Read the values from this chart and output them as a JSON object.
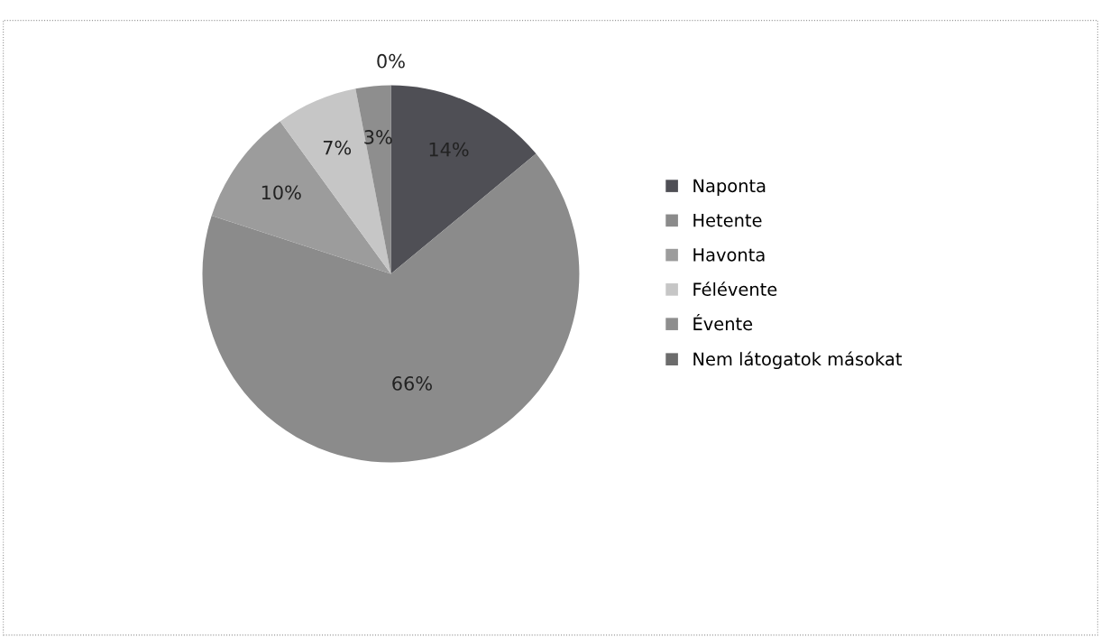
{
  "chart_data": {
    "type": "pie",
    "categories": [
      "Naponta",
      "Hetente",
      "Havonta",
      "Félévente",
      "Évente",
      "Nem látogatok másokat"
    ],
    "values": [
      14,
      66,
      10,
      7,
      3,
      0
    ],
    "colors": [
      "#4f4f55",
      "#8b8b8b",
      "#9c9c9c",
      "#c6c6c6",
      "#8e8e8e",
      "#6c6c6c"
    ],
    "value_labels": [
      "14%",
      "66%",
      "10%",
      "7%",
      "3%",
      "0%"
    ],
    "legend": "right"
  }
}
